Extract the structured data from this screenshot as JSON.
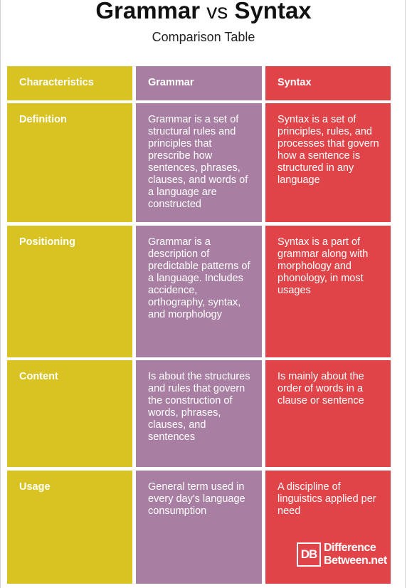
{
  "title": {
    "left": "Grammar",
    "vs": "vs",
    "right": "Syntax"
  },
  "subtitle": "Comparison Table",
  "colors": {
    "characteristics": "#d8c322",
    "grammar": "#a87fa2",
    "syntax": "#e04448"
  },
  "table": {
    "headers": [
      "Characteristics",
      "Grammar",
      "Syntax"
    ],
    "rows": [
      {
        "characteristic": "Definition",
        "grammar": "Grammar is a set of structural rules and principles that prescribe how sentences, phrases, clauses, and words of a language are constructed",
        "syntax": "Syntax is a set of principles, rules, and processes that govern how a sentence is structured in any language"
      },
      {
        "characteristic": "Positioning",
        "grammar": "Grammar is a description of predictable patterns of a language. Includes accidence, orthography, syntax, and morphology",
        "syntax": "Syntax is a part of grammar along with morphology and phonology, in most usages"
      },
      {
        "characteristic": "Content",
        "grammar": "Is about the structures and rules that govern the construction of words, phrases, clauses, and sentences",
        "syntax": "Is mainly about the order of words in a clause or sentence"
      },
      {
        "characteristic": "Usage",
        "grammar": "General term used in every day's language consumption",
        "syntax": "A discipline of linguistics applied per need"
      }
    ]
  },
  "logo": {
    "mark": "DB",
    "line1": "Difference",
    "line2": "Between.net"
  }
}
